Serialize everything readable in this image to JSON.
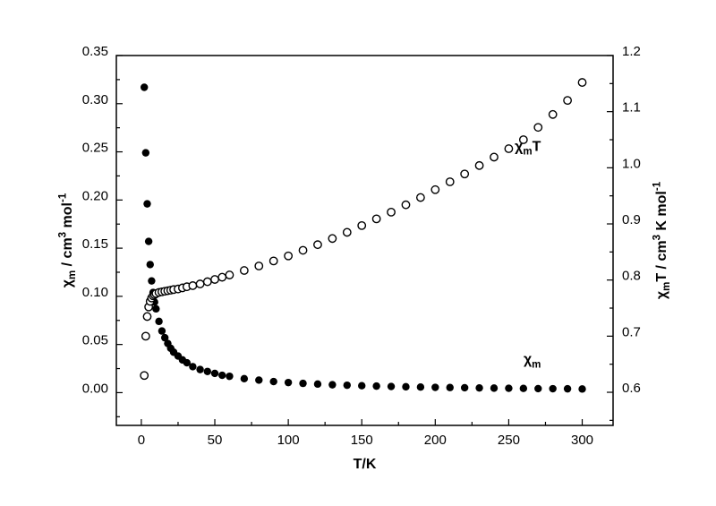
{
  "figure": {
    "background": "#ffffff",
    "frame_color": "#000000"
  },
  "chart_data": {
    "type": "scatter",
    "title": "",
    "xlabel": "T/K",
    "ylabel_left": "χ_{m} / cm^{3} mol^{-1}",
    "ylabel_right": "χ_{m}T / cm^{3} K mol^{-1}",
    "xlim": [
      -17,
      321
    ],
    "ylim_left": [
      -0.034,
      0.35
    ],
    "ylim_right": [
      0.541,
      1.2
    ],
    "grid": false,
    "legend_position": "none",
    "x_ticks": {
      "values": [
        0,
        50,
        100,
        150,
        200,
        250,
        300
      ],
      "labels": [
        "0",
        "50",
        "100",
        "150",
        "200",
        "250",
        "300"
      ],
      "minor_step": 25
    },
    "y_left_ticks": {
      "values": [
        0.0,
        0.05,
        0.1,
        0.15,
        0.2,
        0.25,
        0.3,
        0.35
      ],
      "labels": [
        "0.00",
        "0.05",
        "0.10",
        "0.15",
        "0.20",
        "0.25",
        "0.30",
        "0.35"
      ],
      "minor_step": 0.025
    },
    "y_right_ticks": {
      "values": [
        0.6,
        0.7,
        0.8,
        0.9,
        1.0,
        1.1,
        1.2
      ],
      "labels": [
        "0.6",
        "0.7",
        "0.8",
        "0.9",
        "1.0",
        "1.1",
        "1.2"
      ],
      "minor_step": 0.05
    },
    "series": [
      {
        "name": "chi_m",
        "label": "χ_{m}",
        "axis": "left",
        "marker": "filled-circle",
        "color": "#000000",
        "points": [
          [
            2,
            0.317
          ],
          [
            3,
            0.249
          ],
          [
            4,
            0.196
          ],
          [
            5,
            0.157
          ],
          [
            6,
            0.133
          ],
          [
            7,
            0.116
          ],
          [
            8,
            0.104
          ],
          [
            9,
            0.094
          ],
          [
            10,
            0.087
          ],
          [
            12,
            0.074
          ],
          [
            14,
            0.064
          ],
          [
            16,
            0.057
          ],
          [
            18,
            0.051
          ],
          [
            20,
            0.046
          ],
          [
            22,
            0.042
          ],
          [
            25,
            0.038
          ],
          [
            28,
            0.034
          ],
          [
            31,
            0.031
          ],
          [
            35,
            0.027
          ],
          [
            40,
            0.024
          ],
          [
            45,
            0.022
          ],
          [
            50,
            0.02
          ],
          [
            55,
            0.018
          ],
          [
            60,
            0.017
          ],
          [
            70,
            0.0145
          ],
          [
            80,
            0.013
          ],
          [
            90,
            0.0115
          ],
          [
            100,
            0.0105
          ],
          [
            110,
            0.0096
          ],
          [
            120,
            0.0089
          ],
          [
            130,
            0.0082
          ],
          [
            140,
            0.0077
          ],
          [
            150,
            0.0072
          ],
          [
            160,
            0.0068
          ],
          [
            170,
            0.0064
          ],
          [
            180,
            0.0061
          ],
          [
            190,
            0.0058
          ],
          [
            200,
            0.0055
          ],
          [
            210,
            0.0053
          ],
          [
            220,
            0.0051
          ],
          [
            230,
            0.0049
          ],
          [
            240,
            0.0047
          ],
          [
            250,
            0.0045
          ],
          [
            260,
            0.0044
          ],
          [
            270,
            0.0042
          ],
          [
            280,
            0.0041
          ],
          [
            290,
            0.004
          ],
          [
            300,
            0.0038
          ]
        ]
      },
      {
        "name": "chi_mT",
        "label": "χ_{m}T",
        "axis": "right",
        "marker": "open-circle",
        "color": "#000000",
        "points": [
          [
            2,
            0.63
          ],
          [
            3,
            0.7
          ],
          [
            4,
            0.735
          ],
          [
            5,
            0.752
          ],
          [
            6,
            0.762
          ],
          [
            7,
            0.768
          ],
          [
            8,
            0.772
          ],
          [
            9,
            0.774
          ],
          [
            10,
            0.776
          ],
          [
            12,
            0.778
          ],
          [
            14,
            0.779
          ],
          [
            16,
            0.78
          ],
          [
            18,
            0.781
          ],
          [
            20,
            0.782
          ],
          [
            22,
            0.783
          ],
          [
            25,
            0.784
          ],
          [
            28,
            0.786
          ],
          [
            31,
            0.788
          ],
          [
            35,
            0.79
          ],
          [
            40,
            0.793
          ],
          [
            45,
            0.797
          ],
          [
            50,
            0.801
          ],
          [
            55,
            0.805
          ],
          [
            60,
            0.809
          ],
          [
            70,
            0.817
          ],
          [
            80,
            0.825
          ],
          [
            90,
            0.834
          ],
          [
            100,
            0.843
          ],
          [
            110,
            0.853
          ],
          [
            120,
            0.863
          ],
          [
            130,
            0.874
          ],
          [
            140,
            0.885
          ],
          [
            150,
            0.897
          ],
          [
            160,
            0.909
          ],
          [
            170,
            0.921
          ],
          [
            180,
            0.934
          ],
          [
            190,
            0.947
          ],
          [
            200,
            0.961
          ],
          [
            210,
            0.975
          ],
          [
            220,
            0.989
          ],
          [
            230,
            1.004
          ],
          [
            240,
            1.019
          ],
          [
            250,
            1.034
          ],
          [
            260,
            1.05
          ],
          [
            270,
            1.072
          ],
          [
            280,
            1.095
          ],
          [
            290,
            1.12
          ],
          [
            300,
            1.152
          ]
        ]
      }
    ],
    "annotations": [
      {
        "text": "χ_{m}T",
        "x": 263,
        "y": 1.03,
        "axis": "right"
      },
      {
        "text": "χ_{m}",
        "x": 266,
        "y": 0.03,
        "axis": "left"
      }
    ]
  }
}
